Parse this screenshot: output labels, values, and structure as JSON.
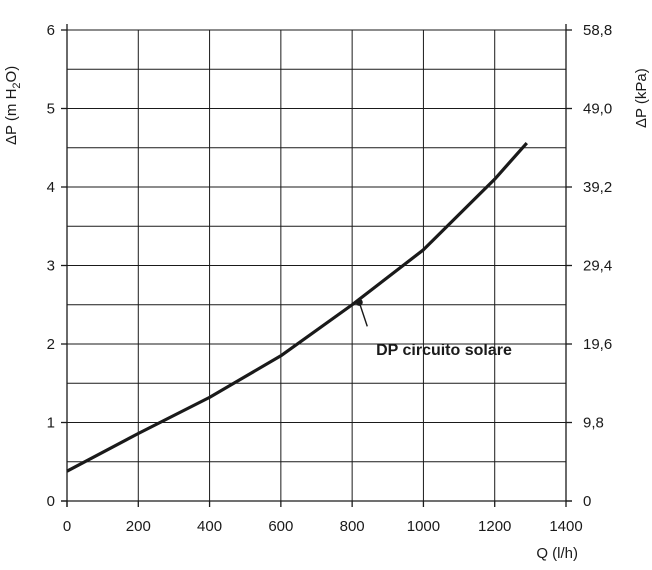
{
  "chart_data": {
    "type": "line",
    "x_axis": {
      "label": "Q (l/h)",
      "range": [
        0,
        1400
      ],
      "ticks": [
        0,
        200,
        400,
        600,
        800,
        1000,
        1200,
        1400
      ]
    },
    "y_axis_left": {
      "label_main": "ΔP (m H",
      "label_sub": "2",
      "label_end": "O)",
      "range": [
        0,
        6
      ],
      "ticks": [
        "0",
        "1",
        "2",
        "3",
        "4",
        "5",
        "6"
      ]
    },
    "y_axis_right": {
      "label": "ΔP (kPa)",
      "ticks": [
        "0",
        "9,8",
        "19,6",
        "29,4",
        "39,2",
        "49,0",
        "58,8"
      ]
    },
    "grid": true,
    "series": [
      {
        "x": [
          0,
          200,
          400,
          600,
          800,
          1000,
          1200,
          1290
        ],
        "y": [
          0.38,
          0.86,
          1.32,
          1.85,
          2.5,
          3.2,
          4.1,
          4.56
        ]
      }
    ],
    "annotations": [
      {
        "text": "DP circuito solare",
        "x": 820,
        "y": 2.53
      }
    ]
  },
  "colors": {
    "line": "#1a1a1a",
    "grid": "#1a1a1a"
  }
}
